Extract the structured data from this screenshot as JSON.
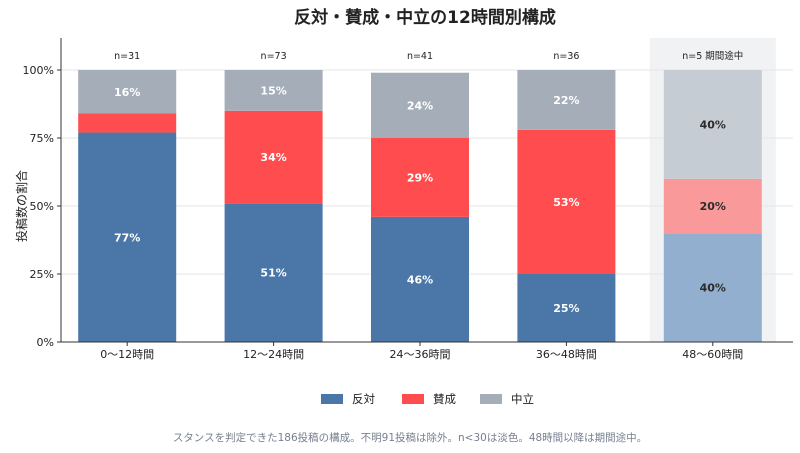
{
  "chart_data": {
    "type": "bar",
    "stacked": true,
    "normalized": true,
    "title": "反対・賛成・中立の12時間別構成",
    "ylabel": "投稿数の割合",
    "xlabel": "",
    "ylim": [
      0,
      100
    ],
    "yticks": [
      0,
      25,
      50,
      75,
      100
    ],
    "ytick_labels": [
      "0%",
      "25%",
      "50%",
      "75%",
      "100%"
    ],
    "grid": "horizontal",
    "legend_position": "bottom",
    "categories": [
      "0〜12時間",
      "12〜24時間",
      "24〜36時間",
      "36〜48時間",
      "48〜60時間"
    ],
    "n_labels": [
      "n=31",
      "n=73",
      "n=41",
      "n=36",
      "n=5 期間途中"
    ],
    "highlight_note": "n=5 期間途中",
    "faded": [
      false,
      false,
      false,
      false,
      true
    ],
    "series": [
      {
        "name": "反対",
        "color": "#4a76a8",
        "faded_color": "#93afcf",
        "values": [
          77,
          51,
          46,
          25,
          40
        ],
        "labels": [
          "77%",
          "51%",
          "46%",
          "25%",
          "40%"
        ]
      },
      {
        "name": "賛成",
        "color": "#ff4d4f",
        "faded_color": "#f99999",
        "values": [
          7,
          34,
          29,
          53,
          20
        ],
        "labels": [
          "",
          "34%",
          "29%",
          "53%",
          "20%"
        ]
      },
      {
        "name": "中立",
        "color": "#a5adb8",
        "faded_color": "#c6ccd4",
        "values": [
          16,
          15,
          24,
          22,
          40
        ],
        "labels": [
          "16%",
          "15%",
          "24%",
          "22%",
          "40%"
        ]
      }
    ],
    "caption": "スタンスを判定できた186投稿の構成。不明91投稿は除外。n<30は淡色。48時間以降は期間途中。"
  }
}
